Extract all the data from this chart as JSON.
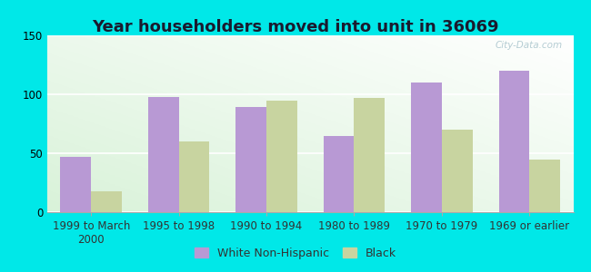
{
  "title": "Year householders moved into unit in 36069",
  "categories": [
    "1999 to March\n2000",
    "1995 to 1998",
    "1990 to 1994",
    "1980 to 1989",
    "1970 to 1979",
    "1969 or earlier"
  ],
  "white_values": [
    47,
    98,
    89,
    65,
    110,
    120
  ],
  "black_values": [
    18,
    60,
    95,
    97,
    70,
    45
  ],
  "white_color": "#b899d4",
  "black_color": "#c8d4a0",
  "background_color": "#00e8e8",
  "ylim": [
    0,
    150
  ],
  "yticks": [
    0,
    50,
    100,
    150
  ],
  "bar_width": 0.35,
  "legend_white": "White Non-Hispanic",
  "legend_black": "Black",
  "title_fontsize": 13,
  "tick_fontsize": 8.5,
  "legend_fontsize": 9
}
